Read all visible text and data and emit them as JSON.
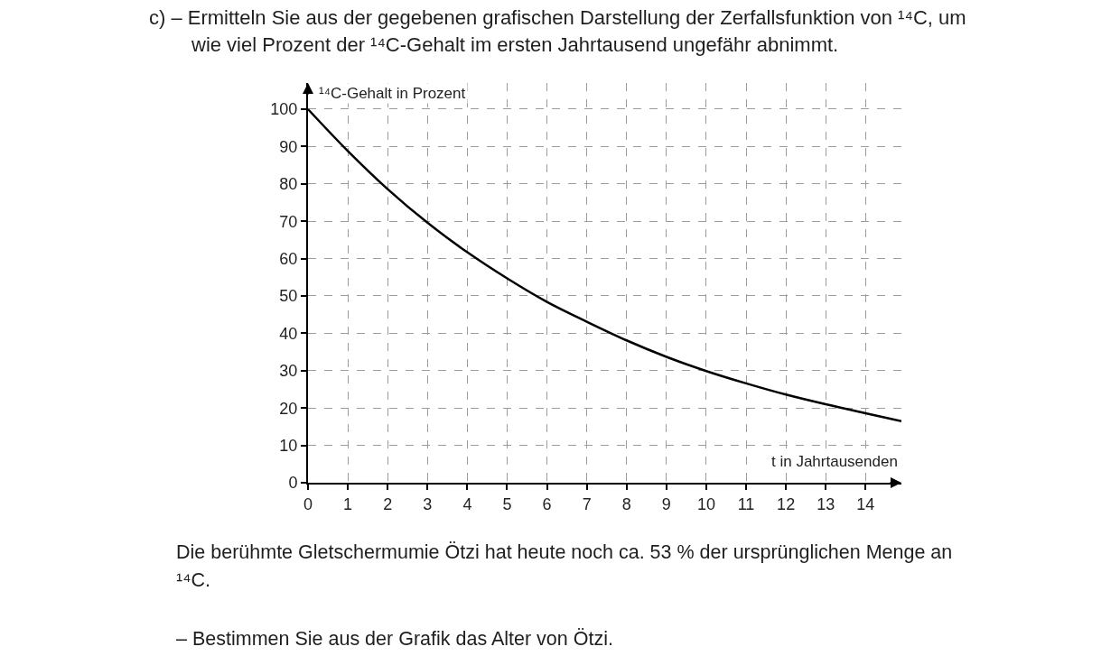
{
  "chart_data": {
    "type": "line",
    "title": "c) – Ermitteln Sie aus der gegebenen grafischen Darstellung der Zerfallsfunktion von ¹⁴C, um wie viel Prozent der ¹⁴C-Gehalt im ersten Jahrtausend ungefähr abnimmt.",
    "xlabel": "t in Jahrtausenden",
    "ylabel": "¹⁴C-Gehalt in Prozent",
    "annotations": [
      "Die berühmte Gletschermumie Ötzi hat heute noch ca. 53 % der ursprünglichen Menge an ¹⁴C.",
      "– Bestimmen Sie aus der Grafik das Alter von Ötzi."
    ],
    "x": [
      0,
      1,
      2,
      3,
      4,
      5,
      6,
      7,
      8,
      9,
      10,
      11,
      12,
      13,
      14,
      14.9
    ],
    "series": [
      {
        "color": "#000000",
        "values": [
          100,
          88.8,
          78.6,
          69.6,
          61.7,
          54.7,
          48.4,
          43.1,
          38.1,
          33.7,
          29.9,
          26.6,
          23.6,
          21,
          18.6,
          16.5
        ]
      }
    ],
    "xlim": [
      0,
      14.9
    ],
    "ylim": [
      0,
      107
    ],
    "xticks": [
      0,
      1,
      2,
      3,
      4,
      5,
      6,
      7,
      8,
      9,
      10,
      11,
      12,
      13,
      14
    ],
    "yticks": [
      0,
      10,
      20,
      30,
      40,
      50,
      60,
      70,
      80,
      90,
      100
    ],
    "grid": true,
    "line_style": "solid"
  }
}
